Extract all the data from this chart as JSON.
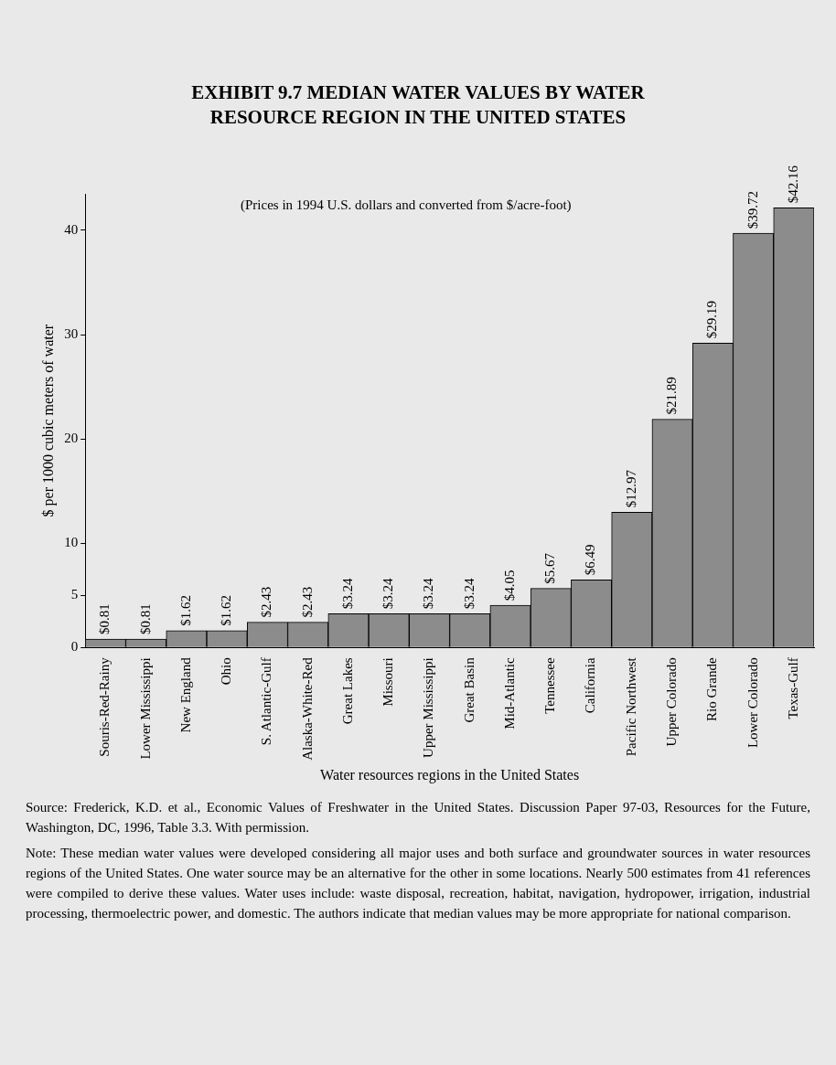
{
  "chart_data": {
    "type": "bar",
    "title": "EXHIBIT 9.7    MEDIAN WATER VALUES BY WATER RESOURCE REGION IN THE UNITED STATES",
    "xlabel": "Water resources regions in the United States",
    "ylabel": "$ per 1000 cubic meters of water",
    "categories": [
      "Souris-Red-Rainy",
      "Lower Mississippi",
      "New England",
      "Ohio",
      "S. Atlantic-Gulf",
      "Alaska-White-Red",
      "Great Lakes",
      "Missouri",
      "Upper Mississippi",
      "Great Basin",
      "Mid-Atlantic",
      "Tennessee",
      "California",
      "Pacific Northwest",
      "Upper Colorado",
      "Rio Grande",
      "Lower Colorado",
      "Texas-Gulf"
    ],
    "values": [
      0.81,
      0.81,
      1.62,
      1.62,
      2.43,
      2.43,
      3.24,
      3.24,
      3.24,
      3.24,
      4.05,
      5.67,
      6.49,
      12.97,
      21.89,
      29.19,
      39.72,
      42.16
    ],
    "value_labels": [
      "$0.81",
      "$0.81",
      "$1.62",
      "$1.62",
      "$2.43",
      "$2.43",
      "$3.24",
      "$3.24",
      "$3.24",
      "$3.24",
      "$4.05",
      "$5.67",
      "$6.49",
      "$12.97",
      "$21.89",
      "$29.19",
      "$39.72",
      "$42.16"
    ],
    "color": "#8c8c8c",
    "ylim": [
      0,
      43.5
    ],
    "yticks": [
      0,
      5,
      10,
      20,
      30,
      40
    ],
    "annotations": [
      "(Prices in 1994 U.S. dollars and converted from $/acre-foot)",
      "Source: Frederick, K.D. et al., Economic Values of Freshwater in the United States. Discussion Paper 97-03, Resources for the Future, Washington, DC, 1996, Table 3.3. With permission.",
      "Note: These median water values were developed considering all major uses and both surface and groundwater sources in water resources regions of the United States. One water source may be an alternative for the other in some locations. Nearly 500 estimates from 41 references were compiled to derive these values. Water uses include: waste disposal, recreation, habitat, navigation, hydropower, irrigation, industrial processing, thermoelectric power, and domestic. The authors indicate that median values may be more appropriate for national comparison."
    ]
  }
}
